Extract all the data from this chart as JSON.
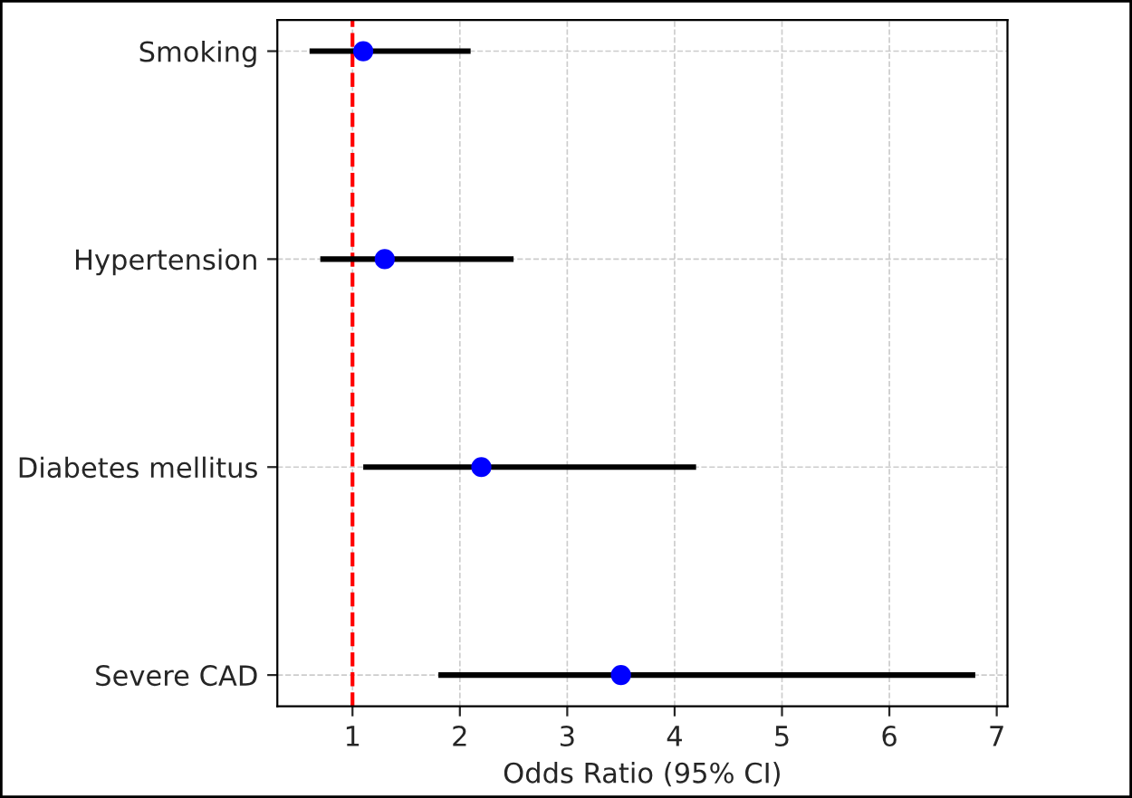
{
  "chart_data": {
    "type": "scatter",
    "orientation": "horizontal",
    "xlabel": "Odds Ratio (95% CI)",
    "categories": [
      "Smoking",
      "Hypertension",
      "Diabetes mellitus",
      "Severe CAD"
    ],
    "values": [
      1.1,
      1.3,
      2.2,
      3.5
    ],
    "errors": [
      [
        0.6,
        2.1
      ],
      [
        0.7,
        2.5
      ],
      [
        1.1,
        4.2
      ],
      [
        1.8,
        6.8
      ]
    ],
    "color": "#0000ff",
    "xlim": [
      0.3,
      7.1
    ],
    "xticks": [
      1,
      2,
      3,
      4,
      5,
      6,
      7
    ],
    "ref_lines": [
      {
        "axis": "x",
        "value": 1,
        "color": "#ff0000",
        "line_style": "dashed"
      }
    ],
    "grid": true,
    "marker": "circle"
  }
}
